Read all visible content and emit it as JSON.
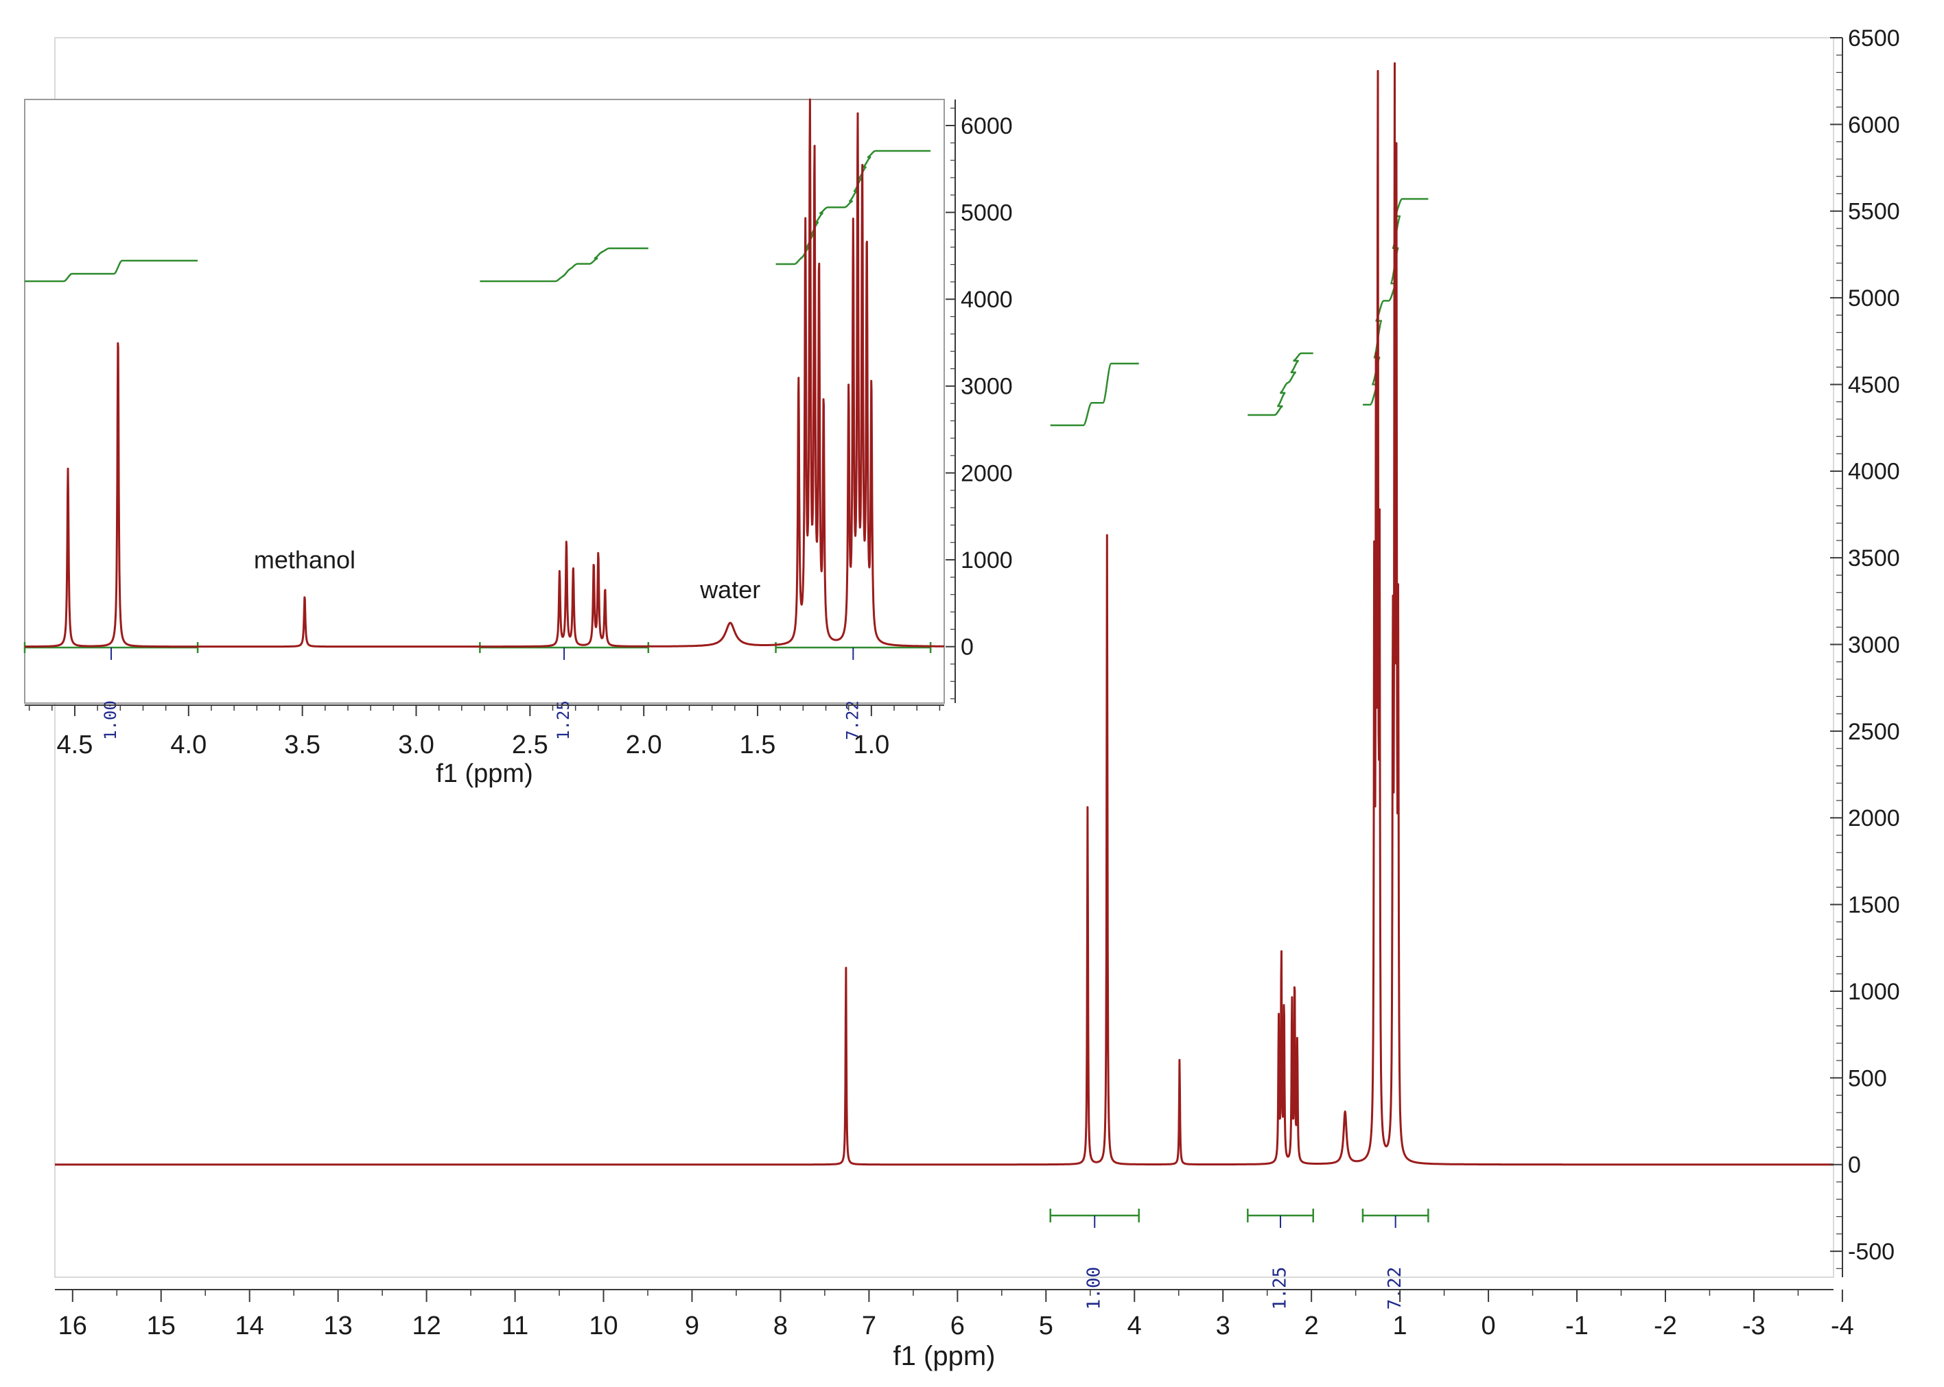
{
  "chart_data": [
    {
      "id": "main",
      "type": "line",
      "title": "",
      "xlabel": "f1 (ppm)",
      "ylabel": "",
      "xlim": [
        16.2,
        -3.9
      ],
      "ylim": [
        -650,
        6500
      ],
      "x_ticks": [
        "16",
        "15",
        "14",
        "13",
        "12",
        "11",
        "10",
        "9",
        "8",
        "7",
        "6",
        "5",
        "4",
        "3",
        "2",
        "1",
        "0",
        "-1",
        "-2",
        "-3",
        "-4"
      ],
      "y_ticks": [
        "-500",
        "0",
        "500",
        "1000",
        "1500",
        "2000",
        "2500",
        "3000",
        "3500",
        "4000",
        "4500",
        "5000",
        "5500",
        "6000",
        "6500"
      ],
      "y_axis_position": "right",
      "spectrum_color": "#9b1c1c",
      "integral_color": "#2e8b2e",
      "peaks": [
        {
          "x": 7.26,
          "y": 1150
        },
        {
          "x": 4.53,
          "y": 2070
        },
        {
          "x": 4.31,
          "y": 3630
        },
        {
          "x": 3.49,
          "y": 610
        },
        {
          "x": 2.37,
          "y": 820
        },
        {
          "x": 2.34,
          "y": 1230
        },
        {
          "x": 2.31,
          "y": 940
        },
        {
          "x": 2.22,
          "y": 950
        },
        {
          "x": 2.19,
          "y": 1070
        },
        {
          "x": 2.16,
          "y": 700
        },
        {
          "x": 1.62,
          "y": 300
        },
        {
          "x": 1.29,
          "y": 3330
        },
        {
          "x": 1.27,
          "y": 4400
        },
        {
          "x": 1.25,
          "y": 6020
        },
        {
          "x": 1.23,
          "y": 3300
        },
        {
          "x": 1.08,
          "y": 2840
        },
        {
          "x": 1.06,
          "y": 5800
        },
        {
          "x": 1.04,
          "y": 5220
        },
        {
          "x": 1.02,
          "y": 2850
        }
      ],
      "integrals": [
        {
          "from": 4.95,
          "to": 3.95,
          "value": "1.00"
        },
        {
          "from": 2.72,
          "to": 1.98,
          "value": "1.25"
        },
        {
          "from": 1.42,
          "to": 0.68,
          "value": "7.22"
        }
      ]
    },
    {
      "id": "inset",
      "type": "line",
      "title": "",
      "xlabel": "f1 (ppm)",
      "ylabel": "",
      "xlim": [
        4.72,
        0.68
      ],
      "ylim": [
        -650,
        6300
      ],
      "x_ticks": [
        "4.5",
        "4.0",
        "3.5",
        "3.0",
        "2.5",
        "2.0",
        "1.5",
        "1.0"
      ],
      "y_ticks": [
        "0",
        "1000",
        "2000",
        "3000",
        "4000",
        "5000",
        "6000"
      ],
      "y_axis_position": "right",
      "spectrum_color": "#9b1c1c",
      "integral_color": "#2e8b2e",
      "peaks": [
        {
          "x": 4.53,
          "y": 2050
        },
        {
          "x": 4.31,
          "y": 3600
        },
        {
          "x": 3.49,
          "y": 580
        },
        {
          "x": 2.37,
          "y": 850
        },
        {
          "x": 2.34,
          "y": 1200
        },
        {
          "x": 2.31,
          "y": 900
        },
        {
          "x": 2.22,
          "y": 930
        },
        {
          "x": 2.2,
          "y": 1050
        },
        {
          "x": 2.17,
          "y": 650
        },
        {
          "x": 1.62,
          "y": 270
        },
        {
          "x": 1.32,
          "y": 3000
        },
        {
          "x": 1.29,
          "y": 4650
        },
        {
          "x": 1.27,
          "y": 5950
        },
        {
          "x": 1.25,
          "y": 5450
        },
        {
          "x": 1.23,
          "y": 4200
        },
        {
          "x": 1.21,
          "y": 2700
        },
        {
          "x": 1.1,
          "y": 2800
        },
        {
          "x": 1.08,
          "y": 4600
        },
        {
          "x": 1.06,
          "y": 5800
        },
        {
          "x": 1.04,
          "y": 5250
        },
        {
          "x": 1.02,
          "y": 4500
        },
        {
          "x": 1.0,
          "y": 2900
        }
      ],
      "integrals": [
        {
          "from": 4.72,
          "to": 3.96,
          "value": "1.00"
        },
        {
          "from": 2.72,
          "to": 1.98,
          "value": "1.25"
        },
        {
          "from": 1.42,
          "to": 0.74,
          "value": "7.22"
        }
      ],
      "annotations": [
        {
          "text": "methanol",
          "x": 3.49,
          "y": 900
        },
        {
          "text": "water",
          "x": 1.62,
          "y": 560
        }
      ]
    }
  ]
}
